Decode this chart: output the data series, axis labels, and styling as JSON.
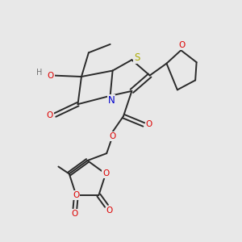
{
  "bg_color": "#e8e8e8",
  "bond_color": "#2a2a2a",
  "bond_lw": 1.4,
  "atom_colors": {
    "O": "#dd0000",
    "N": "#0000cc",
    "S": "#aaaa00",
    "H": "#707070",
    "C": "#2a2a2a"
  },
  "fs": 7.0,
  "figsize": [
    3.0,
    3.0
  ],
  "dpi": 100
}
